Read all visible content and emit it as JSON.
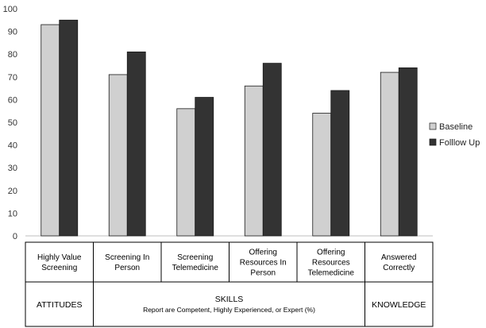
{
  "chart_data": {
    "type": "bar",
    "categories": [
      [
        "Highly Value",
        "Screening"
      ],
      [
        "Screening In",
        "Person"
      ],
      [
        "Screening",
        "Telemedicine"
      ],
      [
        "Offering",
        "Resources In",
        "Person"
      ],
      [
        "Offering",
        "Resources",
        "Telemedicine"
      ],
      [
        "Answered",
        "Correctly"
      ]
    ],
    "series": [
      {
        "name": "Baseline",
        "values": [
          93,
          71,
          56,
          66,
          54,
          72
        ],
        "color": "#d0d0d0"
      },
      {
        "name": "Folllow Up",
        "values": [
          95,
          81,
          61,
          76,
          64,
          74
        ],
        "color": "#333333"
      }
    ],
    "ylim": [
      0,
      100
    ],
    "yticks": [
      0,
      10,
      20,
      30,
      40,
      50,
      60,
      70,
      80,
      90,
      100
    ],
    "grid": false,
    "legend": "right",
    "groups": [
      {
        "label": "ATTITUDES",
        "sub": "",
        "span": [
          0,
          0
        ]
      },
      {
        "label": "SKILLS",
        "sub": "Report are Competent, Highly Experienced, or Expert (%)",
        "span": [
          1,
          4
        ]
      },
      {
        "label": "KNOWLEDGE",
        "sub": "",
        "span": [
          5,
          5
        ]
      }
    ]
  }
}
